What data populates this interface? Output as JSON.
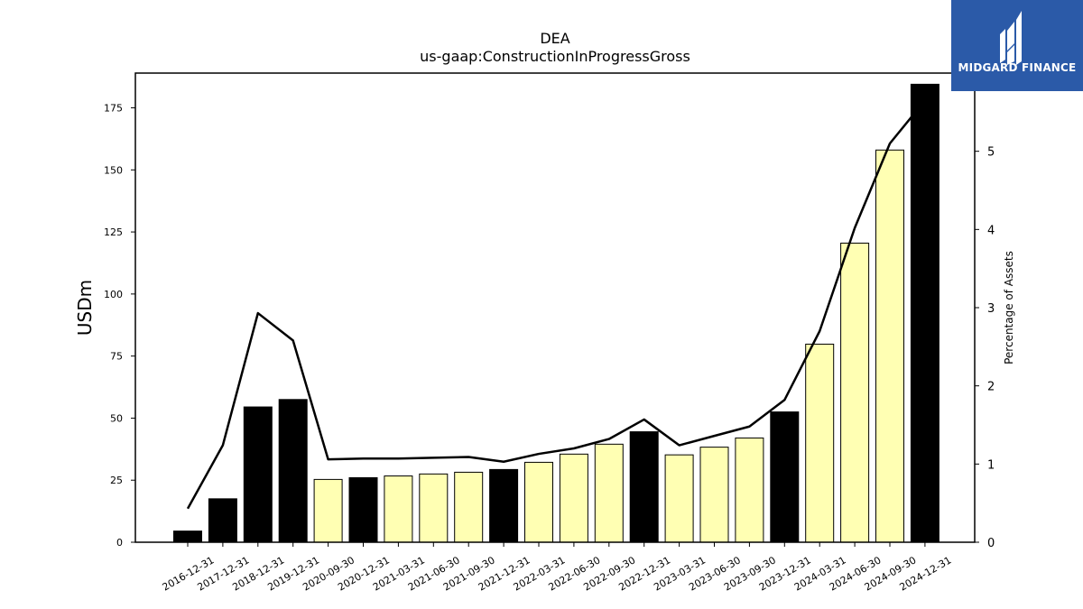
{
  "chart_data": {
    "type": "bar",
    "title": "DEA",
    "subtitle": "us-gaap:ConstructionInProgressGross",
    "ylabel": "USDm",
    "y2label": "Percentage of Assets",
    "ylim": [
      0,
      189
    ],
    "y2lim": [
      0,
      6.0
    ],
    "yticks": [
      0,
      25,
      50,
      75,
      100,
      125,
      150,
      175
    ],
    "y2ticks": [
      0,
      1,
      2,
      3,
      4,
      5
    ],
    "categories": [
      "2016-12-31",
      "2017-12-31",
      "2018-12-31",
      "2019-12-31",
      "2020-09-30",
      "2020-12-31",
      "2021-03-31",
      "2021-06-30",
      "2021-09-30",
      "2021-12-31",
      "2022-03-31",
      "2022-06-30",
      "2022-09-30",
      "2022-12-31",
      "2023-03-31",
      "2023-06-30",
      "2023-09-30",
      "2023-12-31",
      "2024-03-31",
      "2024-06-30",
      "2024-09-30",
      "2024-12-31"
    ],
    "series": [
      {
        "type": "bar",
        "values": [
          4.5,
          17.5,
          54.5,
          57.5,
          25.3,
          26.0,
          26.7,
          27.5,
          28.2,
          29.3,
          32.2,
          35.5,
          39.5,
          44.5,
          35.2,
          38.3,
          42.0,
          52.5,
          79.8,
          120.5,
          158.0,
          184.5
        ],
        "annual": [
          true,
          true,
          true,
          true,
          false,
          true,
          false,
          false,
          false,
          true,
          false,
          false,
          false,
          true,
          false,
          false,
          false,
          true,
          false,
          false,
          false,
          true
        ]
      },
      {
        "type": "line",
        "axis": "right",
        "values": [
          0.43,
          1.24,
          2.93,
          2.58,
          1.06,
          1.07,
          1.07,
          1.08,
          1.09,
          1.03,
          1.13,
          1.2,
          1.32,
          1.57,
          1.24,
          1.36,
          1.48,
          1.82,
          2.7,
          4.02,
          5.1,
          5.65
        ]
      }
    ],
    "colors": {
      "annual_bar": "#000000",
      "quarter_bar": "#ffffb3",
      "line": "#000000"
    },
    "grid": false,
    "legend": "none"
  },
  "logo": {
    "text": "MIDGARD FINANCE",
    "icon": "midgard-logo-icon",
    "background": "#2b5aa8"
  }
}
